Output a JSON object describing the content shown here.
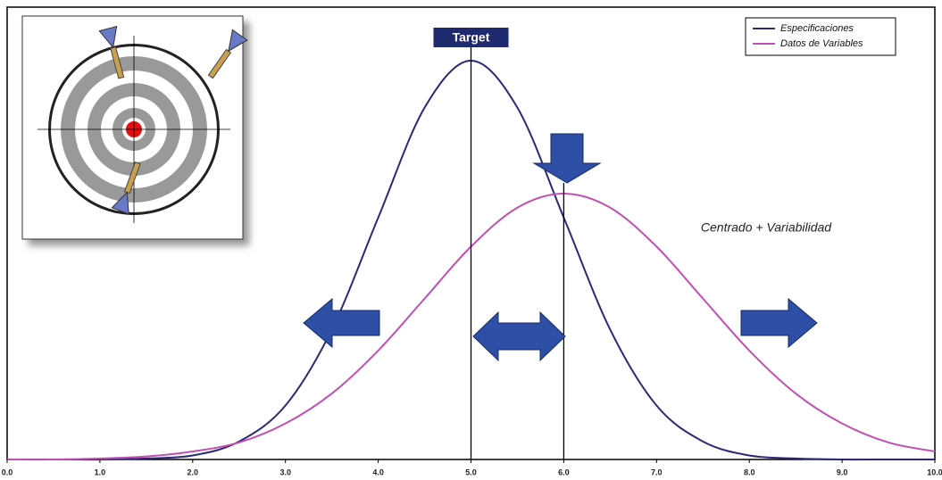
{
  "chart_data": {
    "type": "line",
    "annotation": "Centrado + Variabilidad",
    "reference_lines": [
      {
        "label": "Target",
        "x": 5
      },
      {
        "x": 6
      }
    ],
    "x": [
      0,
      0.5,
      1,
      1.5,
      2,
      2.5,
      3,
      3.5,
      4,
      4.5,
      5,
      5.5,
      6,
      6.5,
      7,
      7.5,
      8,
      8.5,
      9,
      9.5,
      10
    ],
    "series": [
      {
        "name": "Especificaciones",
        "color": "#2b2a78",
        "values": [
          0,
          0,
          0,
          0.001,
          0.004,
          0.018,
          0.054,
          0.13,
          0.242,
          0.352,
          0.399,
          0.352,
          0.242,
          0.13,
          0.054,
          0.018,
          0.004,
          0.001,
          0,
          0,
          0
        ]
      },
      {
        "name": "Datos de Variables",
        "color": "#c24fb4",
        "values": [
          0,
          0,
          0.001,
          0.003,
          0.008,
          0.017,
          0.036,
          0.066,
          0.109,
          0.161,
          0.213,
          0.252,
          0.266,
          0.252,
          0.213,
          0.161,
          0.109,
          0.066,
          0.036,
          0.017,
          0.008
        ]
      }
    ],
    "xlim": [
      0,
      10
    ],
    "xticks": [
      {
        "value": 0,
        "label": "0.0"
      },
      {
        "value": 1,
        "label": "1.0"
      },
      {
        "value": 2,
        "label": "2.0"
      },
      {
        "value": 3,
        "label": "3.0"
      },
      {
        "value": 4,
        "label": "4.0"
      },
      {
        "value": 5,
        "label": "5.0"
      },
      {
        "value": 6,
        "label": "6.0"
      },
      {
        "value": 7,
        "label": "7.0"
      },
      {
        "value": 8,
        "label": "8.0"
      },
      {
        "value": 9,
        "label": "9.0"
      },
      {
        "value": 10,
        "label": "10.0"
      }
    ],
    "ylim": [
      0,
      0.42
    ],
    "legend": "top-right"
  }
}
